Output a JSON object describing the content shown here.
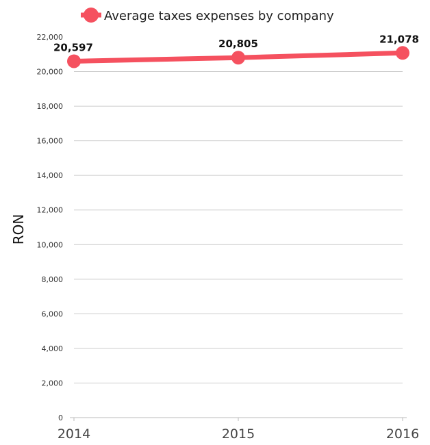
{
  "chart_data": {
    "type": "line",
    "title": "",
    "xlabel": "",
    "ylabel": "RON",
    "categories": [
      "2014",
      "2015",
      "2016"
    ],
    "series": [
      {
        "name": "Average taxes expenses by company",
        "values": [
          20597,
          20805,
          21078
        ],
        "labels": [
          "20,597",
          "20,805",
          "21,078"
        ],
        "color": "#f5515f"
      }
    ],
    "ylim": [
      0,
      22000
    ],
    "yticks": [
      0,
      2000,
      4000,
      6000,
      8000,
      10000,
      12000,
      14000,
      16000,
      18000,
      20000,
      22000
    ],
    "ytick_labels": [
      "0",
      "2,000",
      "4,000",
      "6,000",
      "8,000",
      "10,000",
      "12,000",
      "14,000",
      "16,000",
      "18,000",
      "20,000",
      "22,000"
    ],
    "grid": true,
    "legend": "top-center"
  }
}
